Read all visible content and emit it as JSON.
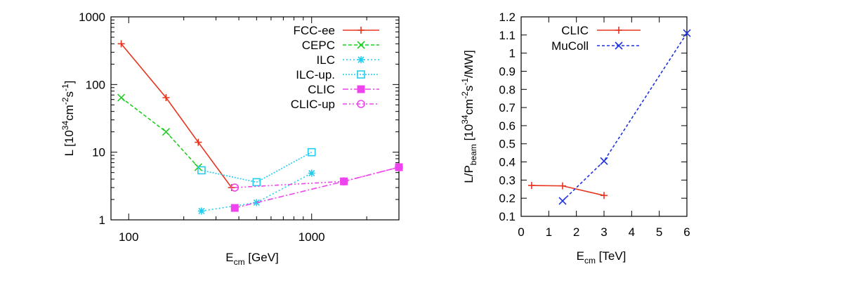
{
  "chart_data": [
    {
      "type": "line",
      "xscale": "log",
      "yscale": "log",
      "xlim": [
        80,
        3000
      ],
      "ylim": [
        1,
        1000
      ],
      "xlabel": {
        "main": "E",
        "sub": "cm",
        "rest": " [GeV]"
      },
      "ylabel": {
        "pre": "L [10",
        "sup1": "34",
        "mid": "cm",
        "sup2": "-2",
        "s": "s",
        "sup3": "-1",
        "post": "]"
      },
      "xticks": [
        {
          "v": 100,
          "label": "100"
        },
        {
          "v": 1000,
          "label": "1000"
        }
      ],
      "yticks": [
        {
          "v": 1,
          "label": "1"
        },
        {
          "v": 10,
          "label": "10"
        },
        {
          "v": 100,
          "label": "100"
        },
        {
          "v": 1000,
          "label": "1000"
        }
      ],
      "minor_xticks": [
        200,
        300,
        400,
        500,
        600,
        700,
        800,
        900,
        2000,
        3000
      ],
      "legend_position": "top-right",
      "series": [
        {
          "name": "FCC-ee",
          "color": "#e8331e",
          "marker": "plus",
          "dash": "",
          "x": [
            91,
            160,
            240,
            365
          ],
          "y": [
            400,
            64,
            14,
            3
          ]
        },
        {
          "name": "CEPC",
          "color": "#22cc22",
          "marker": "cross",
          "dash": "5,3",
          "x": [
            91,
            160,
            240
          ],
          "y": [
            64,
            20,
            6
          ]
        },
        {
          "name": "ILC",
          "color": "#22ccee",
          "marker": "star",
          "dash": "2,3",
          "x": [
            250,
            500,
            1000
          ],
          "y": [
            1.35,
            1.8,
            4.9
          ]
        },
        {
          "name": "ILC-up.",
          "color": "#22ccee",
          "marker": "square",
          "dash": "2,2",
          "x": [
            250,
            500,
            1000
          ],
          "y": [
            5.4,
            3.6,
            10
          ]
        },
        {
          "name": "CLIC",
          "color": "#ee44ee",
          "marker": "filled-square",
          "dash": "8,3,2,3",
          "x": [
            380,
            1500,
            3000
          ],
          "y": [
            1.5,
            3.7,
            6
          ]
        },
        {
          "name": "CLIC-up",
          "color": "#ee44ee",
          "marker": "circle",
          "dash": "6,3,2,3,2,3",
          "x": [
            380,
            1500,
            3000
          ],
          "y": [
            3.0,
            3.7,
            6
          ]
        }
      ]
    },
    {
      "type": "line",
      "xlim": [
        0,
        6
      ],
      "ylim": [
        0.1,
        1.2
      ],
      "xlabel": {
        "main": "E",
        "sub": "cm",
        "rest": " [TeV]"
      },
      "ylabel": {
        "pre": "L/P",
        "sub": "beam",
        "mid": " [10",
        "sup1": "34",
        "cm": "cm",
        "sup2": "-2",
        "s": "s",
        "sup3": "-1",
        "post": "/MW]"
      },
      "xticks": [
        {
          "v": 0,
          "label": "0"
        },
        {
          "v": 1,
          "label": "1"
        },
        {
          "v": 2,
          "label": "2"
        },
        {
          "v": 3,
          "label": "3"
        },
        {
          "v": 4,
          "label": "4"
        },
        {
          "v": 5,
          "label": "5"
        },
        {
          "v": 6,
          "label": "6"
        }
      ],
      "yticks": [
        {
          "v": 0.1,
          "label": "0.1"
        },
        {
          "v": 0.2,
          "label": "0.2"
        },
        {
          "v": 0.3,
          "label": "0.3"
        },
        {
          "v": 0.4,
          "label": "0.4"
        },
        {
          "v": 0.5,
          "label": "0.5"
        },
        {
          "v": 0.6,
          "label": "0.6"
        },
        {
          "v": 0.7,
          "label": "0.7"
        },
        {
          "v": 0.8,
          "label": "0.8"
        },
        {
          "v": 0.9,
          "label": "0.9"
        },
        {
          "v": 1.0,
          "label": "1"
        },
        {
          "v": 1.1,
          "label": "1.1"
        },
        {
          "v": 1.2,
          "label": "1.2"
        }
      ],
      "legend_position": "top-left",
      "series": [
        {
          "name": "CLIC",
          "color": "#e8331e",
          "marker": "plus",
          "dash": "",
          "x": [
            0.38,
            1.5,
            3.0
          ],
          "y": [
            0.27,
            0.268,
            0.215
          ]
        },
        {
          "name": "MuColl",
          "color": "#1e33dd",
          "marker": "cross",
          "dash": "4,3",
          "x": [
            1.5,
            3.0,
            6.0
          ],
          "y": [
            0.185,
            0.405,
            1.11
          ]
        }
      ]
    }
  ]
}
